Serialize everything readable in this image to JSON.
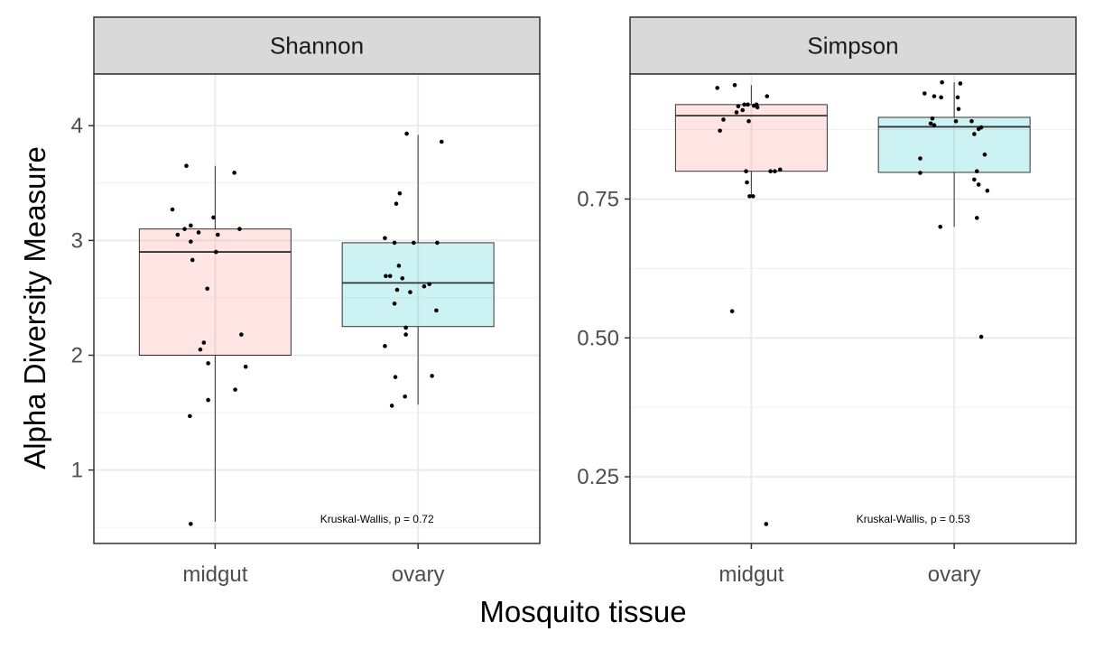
{
  "chart_data": {
    "type": "boxplot",
    "xlabel": "Mosquito tissue",
    "ylabel": "Alpha Diversity Measure",
    "categories": [
      "midgut",
      "ovary"
    ],
    "colors": {
      "midgut": "#f8766d",
      "ovary": "#00bfc4"
    },
    "grid": true,
    "facets": [
      {
        "name": "Shannon",
        "ylim": [
          0.36,
          4.45
        ],
        "yticks": [
          1,
          2,
          3,
          4
        ],
        "ytick_labels": [
          "1",
          "2",
          "3",
          "4"
        ],
        "annotation": "Kruskal-Wallis, p = 0.72",
        "boxes": [
          {
            "category": "midgut",
            "whisker_low": 0.55,
            "q1": 2.0,
            "median": 2.9,
            "q3": 3.1,
            "whisker_high": 3.65
          },
          {
            "category": "ovary",
            "whisker_low": 1.57,
            "q1": 2.25,
            "median": 2.63,
            "q3": 2.98,
            "whisker_high": 3.92
          }
        ],
        "points": [
          {
            "category": "midgut",
            "offset": -0.28,
            "y": 0.53
          },
          {
            "category": "midgut",
            "offset": -0.29,
            "y": 1.47
          },
          {
            "category": "midgut",
            "offset": -0.08,
            "y": 1.61
          },
          {
            "category": "midgut",
            "offset": 0.23,
            "y": 1.7
          },
          {
            "category": "midgut",
            "offset": 0.35,
            "y": 1.9
          },
          {
            "category": "midgut",
            "offset": -0.08,
            "y": 1.93
          },
          {
            "category": "midgut",
            "offset": -0.17,
            "y": 2.05
          },
          {
            "category": "midgut",
            "offset": -0.13,
            "y": 2.11
          },
          {
            "category": "midgut",
            "offset": 0.3,
            "y": 2.18
          },
          {
            "category": "midgut",
            "offset": -0.09,
            "y": 2.58
          },
          {
            "category": "midgut",
            "offset": -0.26,
            "y": 2.83
          },
          {
            "category": "midgut",
            "offset": 0.01,
            "y": 2.9
          },
          {
            "category": "midgut",
            "offset": -0.28,
            "y": 2.99
          },
          {
            "category": "midgut",
            "offset": -0.43,
            "y": 3.05
          },
          {
            "category": "midgut",
            "offset": -0.19,
            "y": 3.07
          },
          {
            "category": "midgut",
            "offset": 0.03,
            "y": 3.05
          },
          {
            "category": "midgut",
            "offset": -0.35,
            "y": 3.1
          },
          {
            "category": "midgut",
            "offset": 0.28,
            "y": 3.1
          },
          {
            "category": "midgut",
            "offset": -0.28,
            "y": 3.13
          },
          {
            "category": "midgut",
            "offset": -0.02,
            "y": 3.2
          },
          {
            "category": "midgut",
            "offset": -0.49,
            "y": 3.27
          },
          {
            "category": "midgut",
            "offset": 0.22,
            "y": 3.59
          },
          {
            "category": "midgut",
            "offset": -0.33,
            "y": 3.65
          },
          {
            "category": "ovary",
            "offset": -0.3,
            "y": 1.56
          },
          {
            "category": "ovary",
            "offset": -0.15,
            "y": 1.64
          },
          {
            "category": "ovary",
            "offset": -0.26,
            "y": 1.81
          },
          {
            "category": "ovary",
            "offset": 0.16,
            "y": 1.82
          },
          {
            "category": "ovary",
            "offset": -0.38,
            "y": 2.08
          },
          {
            "category": "ovary",
            "offset": -0.14,
            "y": 2.18
          },
          {
            "category": "ovary",
            "offset": -0.14,
            "y": 2.24
          },
          {
            "category": "ovary",
            "offset": 0.21,
            "y": 2.39
          },
          {
            "category": "ovary",
            "offset": -0.27,
            "y": 2.45
          },
          {
            "category": "ovary",
            "offset": -0.09,
            "y": 2.55
          },
          {
            "category": "ovary",
            "offset": -0.24,
            "y": 2.57
          },
          {
            "category": "ovary",
            "offset": 0.07,
            "y": 2.6
          },
          {
            "category": "ovary",
            "offset": 0.13,
            "y": 2.62
          },
          {
            "category": "ovary",
            "offset": -0.18,
            "y": 2.67
          },
          {
            "category": "ovary",
            "offset": -0.37,
            "y": 2.69
          },
          {
            "category": "ovary",
            "offset": -0.32,
            "y": 2.69
          },
          {
            "category": "ovary",
            "offset": -0.22,
            "y": 2.78
          },
          {
            "category": "ovary",
            "offset": -0.27,
            "y": 2.98
          },
          {
            "category": "ovary",
            "offset": -0.05,
            "y": 2.98
          },
          {
            "category": "ovary",
            "offset": 0.22,
            "y": 2.98
          },
          {
            "category": "ovary",
            "offset": -0.38,
            "y": 3.02
          },
          {
            "category": "ovary",
            "offset": -0.25,
            "y": 3.32
          },
          {
            "category": "ovary",
            "offset": -0.21,
            "y": 3.41
          },
          {
            "category": "ovary",
            "offset": 0.27,
            "y": 3.86
          },
          {
            "category": "ovary",
            "offset": -0.13,
            "y": 3.93
          }
        ]
      },
      {
        "name": "Simpson",
        "ylim": [
          0.13,
          0.975
        ],
        "yticks": [
          0.25,
          0.5,
          0.75
        ],
        "ytick_labels": [
          "0.25",
          "0.50",
          "0.75"
        ],
        "annotation": "Kruskal-Wallis, p = 0.53",
        "boxes": [
          {
            "category": "midgut",
            "whisker_low": 0.755,
            "q1": 0.8,
            "median": 0.9,
            "q3": 0.92,
            "whisker_high": 0.955
          },
          {
            "category": "ovary",
            "whisker_low": 0.7,
            "q1": 0.798,
            "median": 0.88,
            "q3": 0.897,
            "whisker_high": 0.96
          }
        ],
        "points": [
          {
            "category": "midgut",
            "offset": 0.17,
            "y": 0.165
          },
          {
            "category": "midgut",
            "offset": -0.22,
            "y": 0.548
          },
          {
            "category": "midgut",
            "offset": -0.02,
            "y": 0.755
          },
          {
            "category": "midgut",
            "offset": 0.02,
            "y": 0.755
          },
          {
            "category": "midgut",
            "offset": -0.05,
            "y": 0.78
          },
          {
            "category": "midgut",
            "offset": -0.06,
            "y": 0.8
          },
          {
            "category": "midgut",
            "offset": 0.22,
            "y": 0.8
          },
          {
            "category": "midgut",
            "offset": 0.27,
            "y": 0.8
          },
          {
            "category": "midgut",
            "offset": 0.33,
            "y": 0.803
          },
          {
            "category": "midgut",
            "offset": -0.36,
            "y": 0.873
          },
          {
            "category": "midgut",
            "offset": -0.32,
            "y": 0.893
          },
          {
            "category": "midgut",
            "offset": -0.03,
            "y": 0.89
          },
          {
            "category": "midgut",
            "offset": -0.17,
            "y": 0.906
          },
          {
            "category": "midgut",
            "offset": -0.1,
            "y": 0.91
          },
          {
            "category": "midgut",
            "offset": -0.15,
            "y": 0.917
          },
          {
            "category": "midgut",
            "offset": -0.08,
            "y": 0.92
          },
          {
            "category": "midgut",
            "offset": -0.04,
            "y": 0.92
          },
          {
            "category": "midgut",
            "offset": 0.03,
            "y": 0.918
          },
          {
            "category": "midgut",
            "offset": 0.06,
            "y": 0.92
          },
          {
            "category": "midgut",
            "offset": 0.07,
            "y": 0.915
          },
          {
            "category": "midgut",
            "offset": 0.18,
            "y": 0.935
          },
          {
            "category": "midgut",
            "offset": -0.39,
            "y": 0.95
          },
          {
            "category": "midgut",
            "offset": -0.19,
            "y": 0.955
          },
          {
            "category": "ovary",
            "offset": 0.31,
            "y": 0.502
          },
          {
            "category": "ovary",
            "offset": -0.16,
            "y": 0.7
          },
          {
            "category": "ovary",
            "offset": 0.26,
            "y": 0.716
          },
          {
            "category": "ovary",
            "offset": 0.38,
            "y": 0.765
          },
          {
            "category": "ovary",
            "offset": 0.28,
            "y": 0.776
          },
          {
            "category": "ovary",
            "offset": 0.23,
            "y": 0.785
          },
          {
            "category": "ovary",
            "offset": 0.26,
            "y": 0.8
          },
          {
            "category": "ovary",
            "offset": -0.39,
            "y": 0.797
          },
          {
            "category": "ovary",
            "offset": -0.39,
            "y": 0.823
          },
          {
            "category": "ovary",
            "offset": 0.35,
            "y": 0.83
          },
          {
            "category": "ovary",
            "offset": 0.23,
            "y": 0.867
          },
          {
            "category": "ovary",
            "offset": 0.28,
            "y": 0.876
          },
          {
            "category": "ovary",
            "offset": 0.31,
            "y": 0.879
          },
          {
            "category": "ovary",
            "offset": -0.23,
            "y": 0.883
          },
          {
            "category": "ovary",
            "offset": -0.27,
            "y": 0.886
          },
          {
            "category": "ovary",
            "offset": -0.25,
            "y": 0.895
          },
          {
            "category": "ovary",
            "offset": 0.02,
            "y": 0.89
          },
          {
            "category": "ovary",
            "offset": 0.2,
            "y": 0.89
          },
          {
            "category": "ovary",
            "offset": 0.05,
            "y": 0.912
          },
          {
            "category": "ovary",
            "offset": -0.15,
            "y": 0.933
          },
          {
            "category": "ovary",
            "offset": 0.04,
            "y": 0.933
          },
          {
            "category": "ovary",
            "offset": -0.34,
            "y": 0.94
          },
          {
            "category": "ovary",
            "offset": -0.23,
            "y": 0.935
          },
          {
            "category": "ovary",
            "offset": -0.14,
            "y": 0.96
          },
          {
            "category": "ovary",
            "offset": 0.07,
            "y": 0.958
          }
        ]
      }
    ]
  }
}
